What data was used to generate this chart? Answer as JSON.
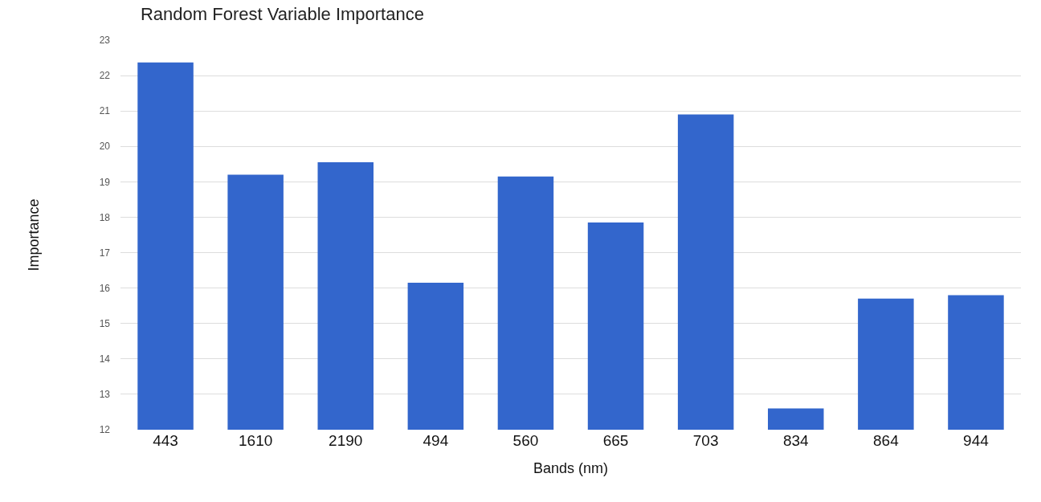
{
  "chart_data": {
    "type": "bar",
    "title": "Random Forest Variable Importance",
    "xlabel": "Bands (nm)",
    "ylabel": "Importance",
    "categories": [
      "443",
      "1610",
      "2190",
      "494",
      "560",
      "665",
      "703",
      "834",
      "864",
      "944"
    ],
    "values": [
      22.37,
      19.2,
      19.55,
      16.15,
      19.15,
      17.85,
      20.9,
      12.6,
      15.7,
      15.8
    ],
    "color": "#3366cc",
    "ylim": [
      12,
      23
    ],
    "yticks": [
      12,
      13,
      14,
      15,
      16,
      17,
      18,
      19,
      20,
      21,
      22,
      23
    ],
    "grid": "y"
  }
}
